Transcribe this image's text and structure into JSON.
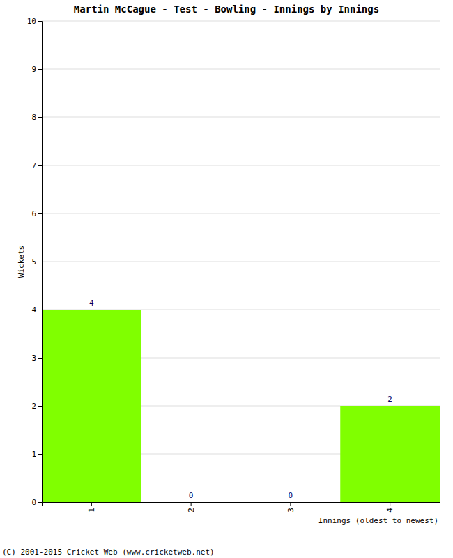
{
  "chart_data": {
    "type": "bar",
    "title": "Martin McCague - Test - Bowling - Innings by Innings",
    "x_label": "Innings (oldest to newest)",
    "y_label": "Wickets",
    "annotations": [
      "(C) 2001-2015 Cricket Web (www.cricketweb.net)"
    ],
    "categories": [
      "1",
      "2",
      "3",
      "4"
    ],
    "values": [
      4,
      0,
      0,
      2
    ],
    "color": "#80ff00",
    "ylim": [
      0,
      10
    ],
    "yticks": [
      0,
      1,
      2,
      3,
      4,
      5,
      6,
      7,
      8,
      9,
      10
    ],
    "grid": true,
    "data_labels": true
  }
}
